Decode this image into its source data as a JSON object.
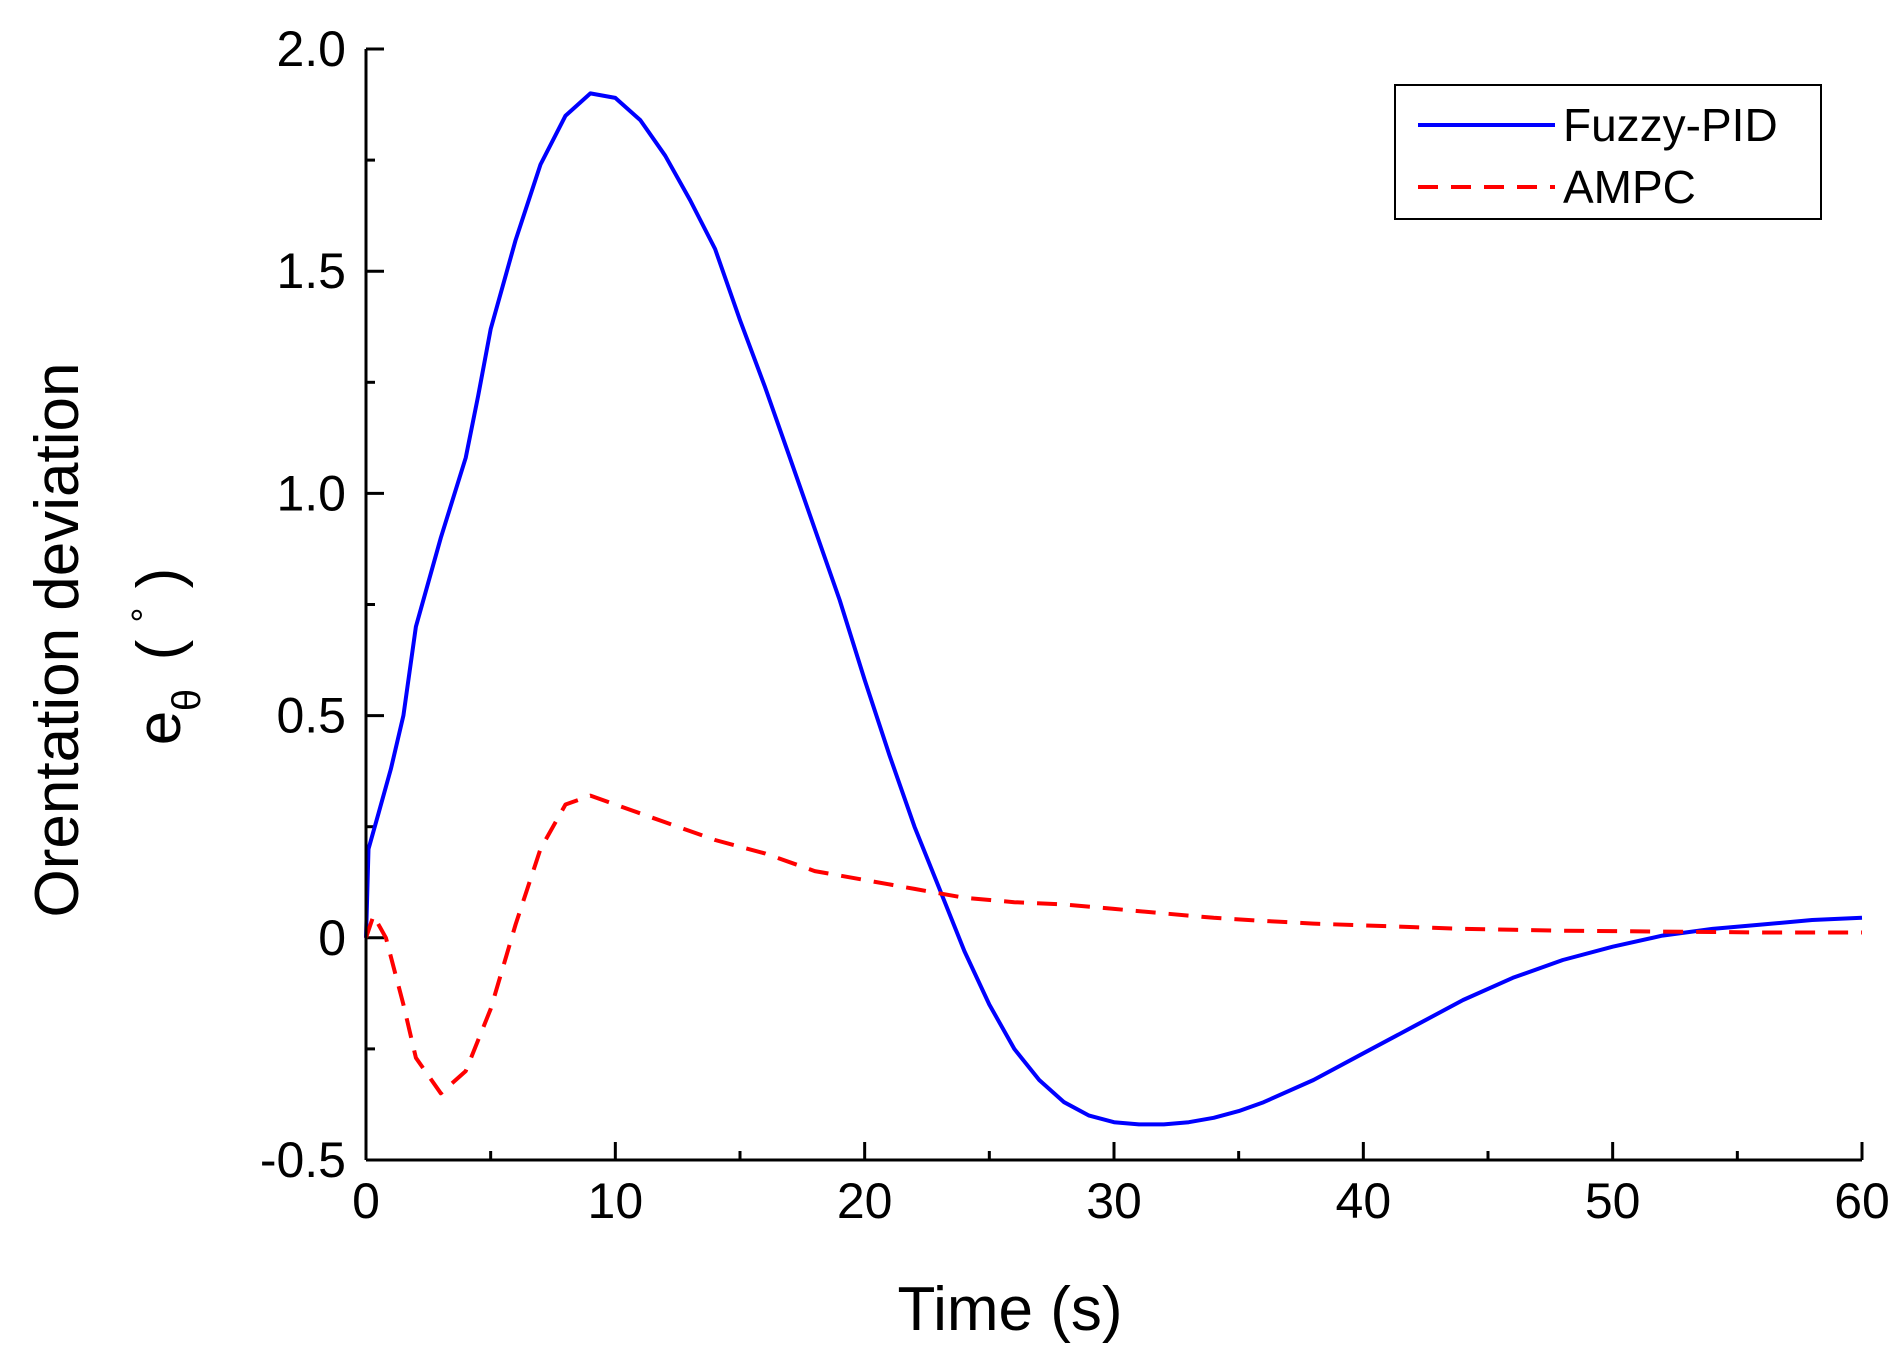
{
  "chart_data": {
    "type": "line",
    "title": "",
    "xlabel": "Time (s)",
    "ylabel": "Orentation deviation",
    "ylabel_symbol": "e",
    "ylabel_subscript": "θ",
    "ylabel_unit_open": "(",
    "ylabel_unit_mark": "°",
    "ylabel_unit_close": ")",
    "xlim": [
      0,
      60
    ],
    "ylim": [
      -0.5,
      2.0
    ],
    "xticks": [
      0,
      10,
      20,
      30,
      40,
      50,
      60
    ],
    "xtick_labels": [
      "0",
      "10",
      "20",
      "30",
      "40",
      "50",
      "60"
    ],
    "yticks": [
      -0.5,
      0,
      0.5,
      1.0,
      1.5,
      2.0
    ],
    "ytick_labels": [
      "-0.5",
      "0",
      "0.5",
      "1.0",
      "1.5",
      "2.0"
    ],
    "grid": false,
    "legend_position": "top-right",
    "series": [
      {
        "name": "Fuzzy-PID",
        "color": "#0000ff",
        "style": "solid",
        "x": [
          0,
          0.1,
          0.5,
          1,
          1.5,
          2,
          3,
          4,
          4.5,
          5,
          6,
          7,
          8,
          9,
          10,
          11,
          12,
          13,
          14,
          15,
          16,
          17,
          18,
          19,
          20,
          21,
          22,
          23,
          24,
          25,
          26,
          27,
          28,
          29,
          30,
          31,
          32,
          33,
          34,
          35,
          36,
          38,
          40,
          42,
          44,
          46,
          48,
          50,
          52,
          54,
          56,
          58,
          60
        ],
        "y": [
          0,
          0.2,
          0.28,
          0.38,
          0.5,
          0.7,
          0.9,
          1.08,
          1.22,
          1.37,
          1.57,
          1.74,
          1.85,
          1.9,
          1.89,
          1.84,
          1.76,
          1.66,
          1.55,
          1.39,
          1.24,
          1.08,
          0.92,
          0.76,
          0.58,
          0.41,
          0.25,
          0.11,
          -0.03,
          -0.15,
          -0.25,
          -0.32,
          -0.37,
          -0.4,
          -0.415,
          -0.42,
          -0.42,
          -0.415,
          -0.405,
          -0.39,
          -0.37,
          -0.32,
          -0.26,
          -0.2,
          -0.14,
          -0.09,
          -0.05,
          -0.02,
          0.005,
          0.02,
          0.03,
          0.04,
          0.045
        ]
      },
      {
        "name": "AMPC",
        "color": "#ff0000",
        "style": "dashed",
        "x": [
          0,
          0.3,
          0.8,
          1.5,
          2,
          3,
          4,
          5,
          6,
          7,
          8,
          9,
          10,
          12,
          14,
          16,
          18,
          20,
          22,
          24,
          26,
          28,
          30,
          32,
          34,
          36,
          38,
          40,
          42,
          44,
          46,
          48,
          50,
          52,
          54,
          56,
          58,
          60
        ],
        "y": [
          0,
          0.05,
          0.0,
          -0.15,
          -0.27,
          -0.35,
          -0.3,
          -0.16,
          0.03,
          0.2,
          0.3,
          0.32,
          0.3,
          0.26,
          0.22,
          0.19,
          0.15,
          0.13,
          0.11,
          0.09,
          0.08,
          0.075,
          0.065,
          0.055,
          0.045,
          0.038,
          0.032,
          0.028,
          0.024,
          0.02,
          0.018,
          0.016,
          0.015,
          0.014,
          0.013,
          0.012,
          0.012,
          0.012
        ]
      }
    ]
  }
}
